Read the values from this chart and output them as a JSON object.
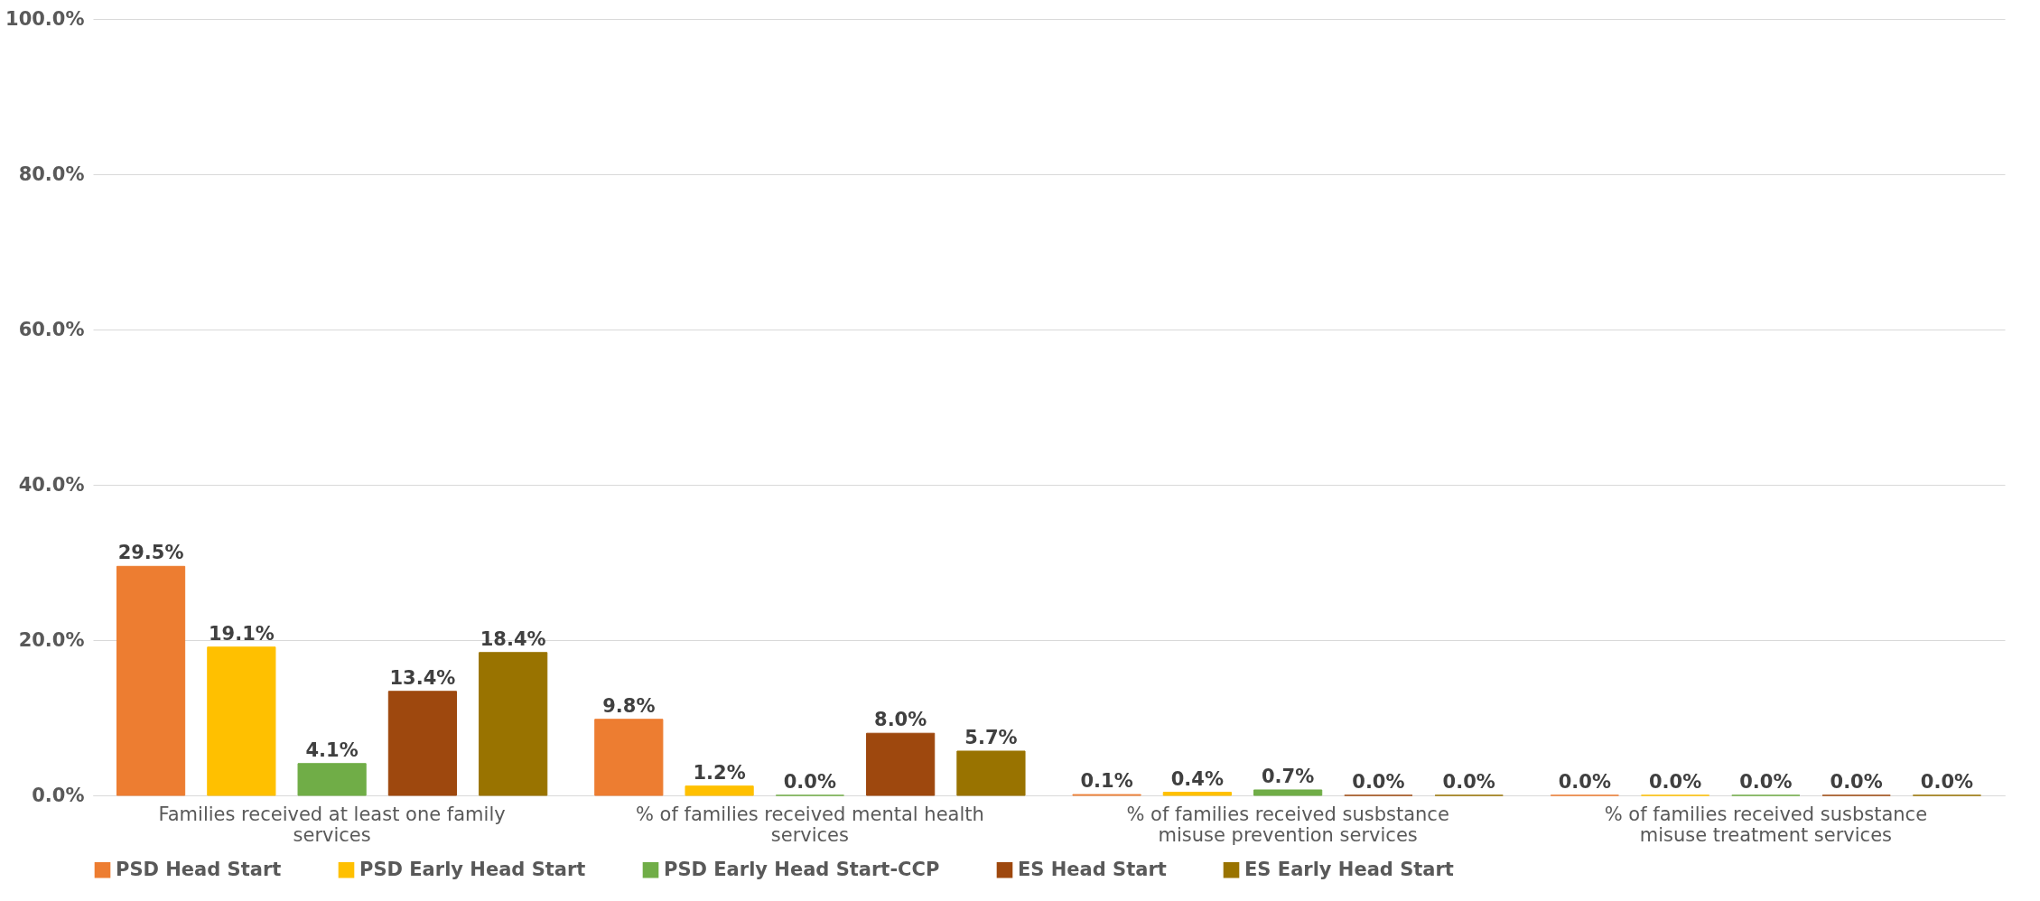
{
  "chart_data": {
    "type": "bar",
    "categories": [
      "Families received at least one family services",
      "% of families received mental health services",
      "% of families received susbstance misuse prevention services",
      "% of families received susbstance misuse treatment services"
    ],
    "series": [
      {
        "name": "PSD Head Start",
        "color": "#ed7d31",
        "values": [
          29.5,
          9.8,
          0.1,
          0.0
        ],
        "value_labels": [
          "29.5%",
          "9.8%",
          "0.1%",
          "0.0%"
        ]
      },
      {
        "name": "PSD Early Head Start",
        "color": "#ffc000",
        "values": [
          19.1,
          1.2,
          0.4,
          0.0
        ],
        "value_labels": [
          "19.1%",
          "1.2%",
          "0.4%",
          "0.0%"
        ]
      },
      {
        "name": "PSD Early Head Start-CCP",
        "color": "#70ad47",
        "values": [
          4.1,
          0.0,
          0.7,
          0.0
        ],
        "value_labels": [
          "4.1%",
          "0.0%",
          "0.7%",
          "0.0%"
        ]
      },
      {
        "name": "ES Head Start",
        "color": "#9e480e",
        "values": [
          13.4,
          8.0,
          0.0,
          0.0
        ],
        "value_labels": [
          "13.4%",
          "8.0%",
          "0.0%",
          "0.0%"
        ]
      },
      {
        "name": "ES Early Head Start",
        "color": "#997300",
        "values": [
          18.4,
          5.7,
          0.0,
          0.0
        ],
        "value_labels": [
          "18.4%",
          "5.7%",
          "0.0%",
          "0.0%"
        ]
      }
    ],
    "ylim": [
      0,
      100
    ],
    "yticks": [
      {
        "value": 0,
        "label": "0.0%"
      },
      {
        "value": 20,
        "label": "20.0%"
      },
      {
        "value": 40,
        "label": "40.0%"
      },
      {
        "value": 60,
        "label": "60.0%"
      },
      {
        "value": 80,
        "label": "80.0%"
      },
      {
        "value": 100,
        "label": "100.0%"
      }
    ],
    "grid": "y",
    "legend": "bottom"
  }
}
